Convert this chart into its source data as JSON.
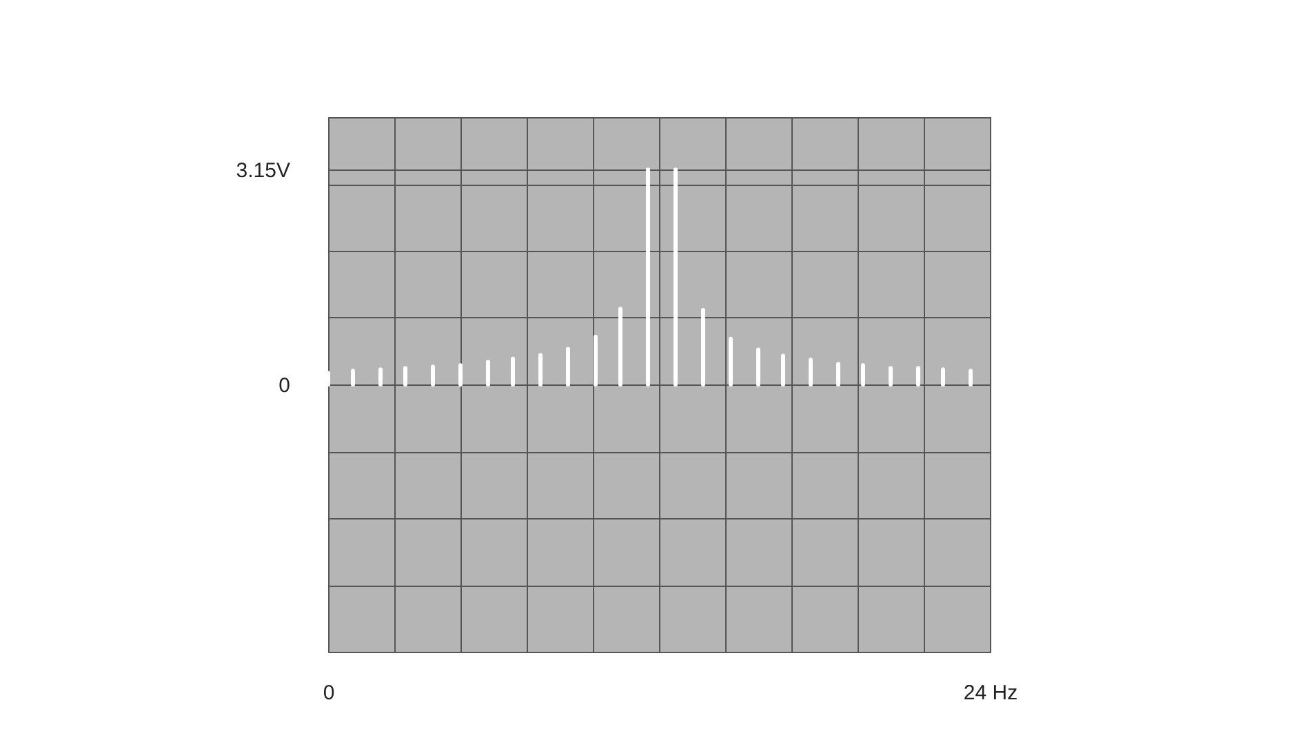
{
  "chart_data": {
    "type": "bar",
    "x": [
      0,
      0.9,
      1.9,
      2.8,
      3.8,
      4.8,
      5.8,
      6.7,
      7.7,
      8.7,
      9.7,
      10.6,
      11.6,
      12.6,
      13.6,
      14.6,
      15.6,
      16.5,
      17.5,
      18.5,
      19.4,
      20.4,
      21.4,
      22.3,
      23.3
    ],
    "series": [
      {
        "color": "#ffffff",
        "values": [
          0.17,
          0.2,
          0.22,
          0.24,
          0.26,
          0.28,
          0.33,
          0.38,
          0.43,
          0.52,
          0.7,
          1.11,
          3.15,
          3.15,
          1.09,
          0.67,
          0.51,
          0.42,
          0.36,
          0.3,
          0.28,
          0.24,
          0.24,
          0.22,
          0.2
        ]
      }
    ],
    "xlim": [
      0,
      24
    ],
    "xticks": [
      0,
      {
        "value": 2.4,
        "label": null
      },
      {
        "value": 4.8,
        "label": null
      },
      {
        "value": 7.2,
        "label": null
      },
      {
        "value": 9.6,
        "label": null
      },
      {
        "value": 12,
        "label": null
      },
      {
        "value": 14.4,
        "label": null
      },
      {
        "value": 16.8,
        "label": null
      },
      {
        "value": 19.2,
        "label": null
      },
      {
        "value": 21.6,
        "label": null
      },
      {
        "value": 24,
        "label": "24 Hz"
      }
    ],
    "ylim": [
      -3.92,
      3.92
    ],
    "yticks": [
      {
        "value": -3.92,
        "label": null
      },
      {
        "value": -2.94,
        "label": null
      },
      {
        "value": -1.96,
        "label": null
      },
      {
        "value": -0.98,
        "label": null
      },
      0,
      {
        "value": 0.98,
        "label": null
      },
      {
        "value": 1.96,
        "label": null
      },
      {
        "value": 2.94,
        "label": null
      },
      {
        "value": 3.15,
        "label": "3.15V"
      },
      {
        "value": 3.92,
        "label": null
      }
    ],
    "grid": true
  }
}
